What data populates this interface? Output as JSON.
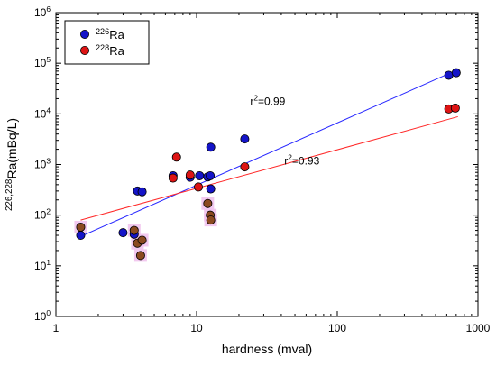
{
  "chart_data": {
    "type": "scatter",
    "xscale": "log",
    "yscale": "log",
    "xlim": [
      1,
      1000
    ],
    "ylim": [
      1,
      1000000
    ],
    "xlabel": "hardness (mval)",
    "ylabel_sup": "226,228",
    "ylabel_main": "Ra(mBq/L)",
    "x_ticks": [
      {
        "value": 1,
        "label": "1"
      },
      {
        "value": 10,
        "label": "10"
      },
      {
        "value": 100,
        "label": "100"
      },
      {
        "value": 1000,
        "label": "1000"
      }
    ],
    "y_ticks": [
      {
        "exp": 0,
        "base": "10",
        "sup": "0"
      },
      {
        "exp": 1,
        "base": "10",
        "sup": "1"
      },
      {
        "exp": 2,
        "base": "10",
        "sup": "2"
      },
      {
        "exp": 3,
        "base": "10",
        "sup": "3"
      },
      {
        "exp": 4,
        "base": "10",
        "sup": "4"
      },
      {
        "exp": 5,
        "base": "10",
        "sup": "5"
      },
      {
        "exp": 6,
        "base": "10",
        "sup": "6"
      }
    ],
    "grid": false,
    "legend_position": "top-left",
    "series": [
      {
        "name_sup": "226",
        "name_main": "Ra",
        "color": "#1414c8",
        "trend_color": "#2828ff",
        "trend_x": [
          1.5,
          720
        ],
        "trend_y": [
          38,
          75000
        ],
        "trend_label": {
          "main": "r",
          "sup": "2",
          "tail": "=0.99",
          "x": 24,
          "y": 15000
        },
        "points": [
          {
            "x": 1.5,
            "y": 40
          },
          {
            "x": 3.0,
            "y": 45
          },
          {
            "x": 3.6,
            "y": 42
          },
          {
            "x": 3.8,
            "y": 300
          },
          {
            "x": 4.1,
            "y": 290
          },
          {
            "x": 6.8,
            "y": 600
          },
          {
            "x": 9.0,
            "y": 560
          },
          {
            "x": 10.5,
            "y": 600
          },
          {
            "x": 12.0,
            "y": 570
          },
          {
            "x": 12.5,
            "y": 600
          },
          {
            "x": 12.6,
            "y": 2200
          },
          {
            "x": 12.6,
            "y": 330
          },
          {
            "x": 22.0,
            "y": 3200
          },
          {
            "x": 620,
            "y": 58000
          },
          {
            "x": 700,
            "y": 65000
          }
        ]
      },
      {
        "name_sup": "228",
        "name_main": "Ra",
        "color": "#dd1414",
        "trend_color": "#ff2828",
        "trend_x": [
          1.5,
          720
        ],
        "trend_y": [
          80,
          8800
        ],
        "trend_label": {
          "main": "r",
          "sup": "2",
          "tail": "=0.93",
          "x": 42,
          "y": 1000
        },
        "points": [
          {
            "x": 1.5,
            "y": 58
          },
          {
            "x": 3.6,
            "y": 50
          },
          {
            "x": 3.8,
            "y": 28
          },
          {
            "x": 4.0,
            "y": 16
          },
          {
            "x": 4.1,
            "y": 32
          },
          {
            "x": 6.8,
            "y": 540
          },
          {
            "x": 7.2,
            "y": 1400
          },
          {
            "x": 9.0,
            "y": 620
          },
          {
            "x": 10.3,
            "y": 360
          },
          {
            "x": 12.0,
            "y": 170
          },
          {
            "x": 12.5,
            "y": 100
          },
          {
            "x": 12.6,
            "y": 80
          },
          {
            "x": 22.0,
            "y": 900
          },
          {
            "x": 620,
            "y": 12500
          },
          {
            "x": 690,
            "y": 13000
          }
        ]
      }
    ],
    "overlap_color": "#8b4a20",
    "overlap_halo": "#f0c0ec"
  }
}
